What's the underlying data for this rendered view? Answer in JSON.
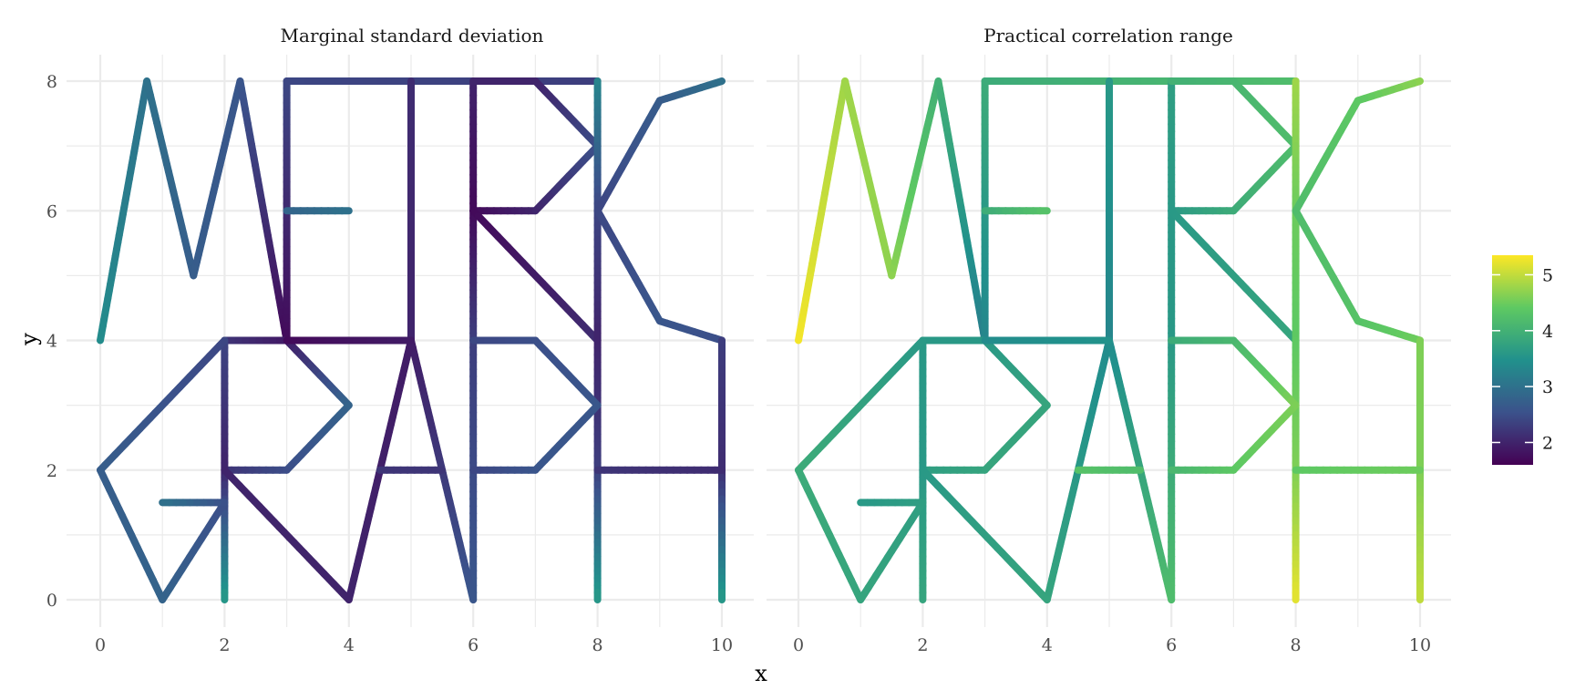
{
  "chart_data": {
    "type": "line",
    "xlabel": "x",
    "ylabel": "y",
    "xlim": [
      0,
      10
    ],
    "ylim": [
      0,
      8
    ],
    "x_ticks": [
      0,
      2,
      4,
      6,
      8,
      10
    ],
    "y_ticks": [
      0,
      2,
      4,
      6,
      8
    ],
    "grid": true,
    "legend_placement": "right",
    "color_scale": {
      "name": "viridis",
      "stops": [
        "#440154",
        "#3b528b",
        "#21918c",
        "#5ec962",
        "#fde725"
      ],
      "range": [
        1.6,
        5.35
      ],
      "ticks": [
        2,
        3,
        4,
        5
      ],
      "tick_labels": [
        "2",
        "3",
        "4",
        "5"
      ]
    },
    "panels": [
      {
        "title": "Marginal standard deviation",
        "segments": [
          {
            "points": [
              [
                0,
                4
              ],
              [
                0.75,
                8
              ],
              [
                1.5,
                5
              ],
              [
                2.25,
                8
              ],
              [
                3,
                4
              ]
            ],
            "values": [
              3.4,
              3.0,
              2.7,
              2.6,
              1.7
            ]
          },
          {
            "points": [
              [
                3,
                4
              ],
              [
                3,
                8
              ],
              [
                8,
                8
              ]
            ],
            "values": [
              1.7,
              2.4,
              2.3
            ]
          },
          {
            "points": [
              [
                3,
                6
              ],
              [
                4,
                6
              ]
            ],
            "values": [
              2.8,
              3.0
            ]
          },
          {
            "points": [
              [
                5,
                8
              ],
              [
                5,
                4
              ]
            ],
            "values": [
              2.1,
              2.0
            ]
          },
          {
            "points": [
              [
                6,
                8
              ],
              [
                6,
                6
              ],
              [
                6,
                4
              ],
              [
                6,
                0
              ]
            ],
            "values": [
              2.0,
              1.7,
              2.3,
              2.6
            ]
          },
          {
            "points": [
              [
                6,
                6
              ],
              [
                7,
                6
              ],
              [
                8,
                7
              ],
              [
                7,
                8
              ],
              [
                6,
                8
              ]
            ],
            "values": [
              1.7,
              2.0,
              2.5,
              2.0,
              2.0
            ]
          },
          {
            "points": [
              [
                6,
                6
              ],
              [
                8,
                4
              ]
            ],
            "values": [
              1.7,
              2.1
            ]
          },
          {
            "points": [
              [
                8,
                8
              ],
              [
                8,
                6
              ],
              [
                8,
                4
              ],
              [
                8,
                2
              ],
              [
                8,
                0
              ]
            ],
            "values": [
              3.3,
              2.4,
              2.0,
              2.3,
              3.6
            ]
          },
          {
            "points": [
              [
                10,
                8
              ],
              [
                9,
                7.7
              ],
              [
                8,
                6
              ],
              [
                9,
                4.3
              ],
              [
                10,
                4
              ]
            ],
            "values": [
              3.0,
              2.7,
              2.4,
              2.6,
              2.5
            ]
          },
          {
            "points": [
              [
                10,
                4
              ],
              [
                10,
                2
              ],
              [
                10,
                0
              ]
            ],
            "values": [
              2.3,
              2.1,
              3.6
            ]
          },
          {
            "points": [
              [
                8,
                2
              ],
              [
                10,
                2
              ]
            ],
            "values": [
              2.2,
              2.1
            ]
          },
          {
            "points": [
              [
                2,
                4
              ],
              [
                3,
                4
              ],
              [
                4,
                3
              ],
              [
                3,
                2
              ],
              [
                2,
                2
              ]
            ],
            "values": [
              2.2,
              1.9,
              2.8,
              2.5,
              2.2
            ]
          },
          {
            "points": [
              [
                2,
                4
              ],
              [
                2,
                2
              ],
              [
                2,
                0
              ]
            ],
            "values": [
              2.4,
              2.0,
              3.6
            ]
          },
          {
            "points": [
              [
                2,
                2
              ],
              [
                4,
                0
              ]
            ],
            "values": [
              2.0,
              2.0
            ]
          },
          {
            "points": [
              [
                2,
                4
              ],
              [
                0,
                2
              ],
              [
                1,
                0
              ],
              [
                2,
                1.5
              ],
              [
                1,
                1.5
              ]
            ],
            "values": [
              2.4,
              2.7,
              2.8,
              2.5,
              3.0
            ]
          },
          {
            "points": [
              [
                4,
                0
              ],
              [
                5,
                4
              ],
              [
                6,
                0
              ]
            ],
            "values": [
              2.0,
              1.9,
              2.6
            ]
          },
          {
            "points": [
              [
                4.5,
                2
              ],
              [
                5.5,
                2
              ]
            ],
            "values": [
              2.2,
              2.2
            ]
          },
          {
            "points": [
              [
                3,
                4
              ],
              [
                5,
                4
              ]
            ],
            "values": [
              1.7,
              1.9
            ]
          },
          {
            "points": [
              [
                6,
                4
              ],
              [
                7,
                4
              ],
              [
                8,
                3
              ],
              [
                7,
                2
              ],
              [
                6,
                2
              ]
            ],
            "values": [
              2.4,
              2.5,
              2.6,
              2.6,
              2.4
            ]
          }
        ]
      },
      {
        "title": "Practical correlation range",
        "segments": [
          {
            "points": [
              [
                0,
                4
              ],
              [
                0.75,
                8
              ],
              [
                1.5,
                5
              ],
              [
                2.25,
                8
              ],
              [
                3,
                4
              ]
            ],
            "values": [
              5.3,
              4.8,
              4.7,
              4.0,
              3.2
            ]
          },
          {
            "points": [
              [
                3,
                4
              ],
              [
                3,
                8
              ],
              [
                8,
                8
              ]
            ],
            "values": [
              3.3,
              3.9,
              4.2
            ]
          },
          {
            "points": [
              [
                3,
                6
              ],
              [
                4,
                6
              ]
            ],
            "values": [
              3.9,
              4.3
            ]
          },
          {
            "points": [
              [
                5,
                8
              ],
              [
                5,
                4
              ]
            ],
            "values": [
              3.6,
              3.3
            ]
          },
          {
            "points": [
              [
                6,
                8
              ],
              [
                6,
                6
              ],
              [
                6,
                4
              ],
              [
                6,
                0
              ]
            ],
            "values": [
              3.7,
              3.6,
              3.6,
              4.2
            ]
          },
          {
            "points": [
              [
                6,
                6
              ],
              [
                7,
                6
              ],
              [
                8,
                7
              ],
              [
                7,
                8
              ],
              [
                6,
                8
              ]
            ],
            "values": [
              3.6,
              3.9,
              4.2,
              4.1,
              4.0
            ]
          },
          {
            "points": [
              [
                6,
                6
              ],
              [
                8,
                4
              ]
            ],
            "values": [
              3.6,
              3.8
            ]
          },
          {
            "points": [
              [
                8,
                8
              ],
              [
                8,
                6
              ],
              [
                8,
                4
              ],
              [
                8,
                2
              ],
              [
                8,
                0
              ]
            ],
            "values": [
              4.8,
              4.5,
              4.4,
              4.6,
              5.2
            ]
          },
          {
            "points": [
              [
                10,
                8
              ],
              [
                9,
                7.7
              ],
              [
                8,
                6
              ],
              [
                9,
                4.3
              ],
              [
                10,
                4
              ]
            ],
            "values": [
              4.7,
              4.4,
              4.2,
              4.3,
              4.5
            ]
          },
          {
            "points": [
              [
                10,
                4
              ],
              [
                10,
                2
              ],
              [
                10,
                0
              ]
            ],
            "values": [
              4.6,
              4.6,
              5.0
            ]
          },
          {
            "points": [
              [
                8,
                2
              ],
              [
                10,
                2
              ]
            ],
            "values": [
              4.4,
              4.5
            ]
          },
          {
            "points": [
              [
                2,
                4
              ],
              [
                3,
                4
              ],
              [
                4,
                3
              ],
              [
                3,
                2
              ],
              [
                2,
                2
              ]
            ],
            "values": [
              3.6,
              3.6,
              3.8,
              3.8,
              3.7
            ]
          },
          {
            "points": [
              [
                2,
                4
              ],
              [
                2,
                2
              ],
              [
                2,
                0
              ]
            ],
            "values": [
              3.6,
              3.6,
              3.8
            ]
          },
          {
            "points": [
              [
                2,
                2
              ],
              [
                4,
                0
              ]
            ],
            "values": [
              3.6,
              3.8
            ]
          },
          {
            "points": [
              [
                2,
                4
              ],
              [
                0,
                2
              ],
              [
                1,
                0
              ],
              [
                2,
                1.5
              ],
              [
                1,
                1.5
              ]
            ],
            "values": [
              3.6,
              3.9,
              3.8,
              3.7,
              3.6
            ]
          },
          {
            "points": [
              [
                4,
                0
              ],
              [
                5,
                4
              ],
              [
                6,
                0
              ]
            ],
            "values": [
              3.8,
              3.4,
              4.2
            ]
          },
          {
            "points": [
              [
                4.5,
                2
              ],
              [
                5.5,
                2
              ]
            ],
            "values": [
              4.3,
              4.2
            ]
          },
          {
            "points": [
              [
                3,
                4
              ],
              [
                5,
                4
              ]
            ],
            "values": [
              3.4,
              3.5
            ]
          },
          {
            "points": [
              [
                6,
                4
              ],
              [
                7,
                4
              ],
              [
                8,
                3
              ],
              [
                7,
                2
              ],
              [
                6,
                2
              ]
            ],
            "values": [
              3.9,
              4.1,
              4.6,
              4.4,
              4.1
            ]
          }
        ]
      }
    ]
  }
}
